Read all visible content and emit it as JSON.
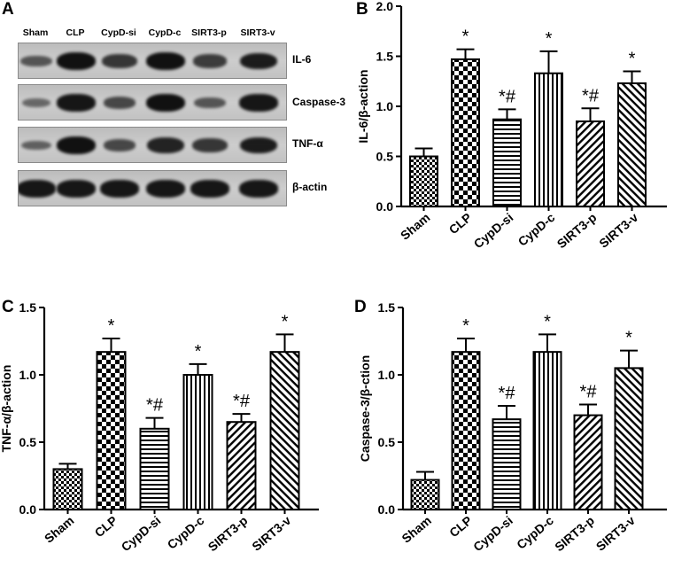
{
  "panel_labels": {
    "a": "A",
    "b": "B",
    "c": "C",
    "d": "D"
  },
  "blot": {
    "lanes": [
      "Sham",
      "CLP",
      "CypD-si",
      "CypD-c",
      "SIRT3-p",
      "SIRT3-v"
    ],
    "rows": [
      {
        "label": "IL-6",
        "intensity": [
          0.45,
          1.0,
          0.7,
          1.0,
          0.65,
          0.9
        ]
      },
      {
        "label": "Caspase-3",
        "intensity": [
          0.3,
          0.95,
          0.55,
          1.0,
          0.45,
          0.95
        ]
      },
      {
        "label": "TNF-α",
        "intensity": [
          0.35,
          1.0,
          0.55,
          0.85,
          0.7,
          0.9
        ]
      },
      {
        "label": "β-actin",
        "intensity": [
          0.95,
          0.95,
          0.95,
          0.95,
          0.95,
          0.95
        ]
      }
    ]
  },
  "chart_data": [
    {
      "type": "bar",
      "panel": "B",
      "categories": [
        "Sham",
        "CLP",
        "CypD-si",
        "CypD-c",
        "SIRT3-p",
        "SIRT3-v"
      ],
      "values": [
        0.5,
        1.47,
        0.87,
        1.33,
        0.85,
        1.23
      ],
      "errors": [
        0.08,
        0.1,
        0.1,
        0.22,
        0.13,
        0.12
      ],
      "annotations": [
        "",
        "*",
        "*#",
        "*",
        "*#",
        "*"
      ],
      "patterns": [
        "checker-small",
        "checker-big",
        "horizontal",
        "vertical",
        "diag-down",
        "diag-up"
      ],
      "ylabel": "IL-6/β-action",
      "ylim": [
        0,
        2.0
      ],
      "yticks": [
        0,
        0.5,
        1.0,
        1.5,
        2.0
      ],
      "ytick_labels": [
        "0.0",
        "0.5",
        "1.0",
        "1.5",
        "2.0"
      ],
      "grid": false
    },
    {
      "type": "bar",
      "panel": "C",
      "categories": [
        "Sham",
        "CLP",
        "CypD-si",
        "CypD-c",
        "SIRT3-p",
        "SIRT3-v"
      ],
      "values": [
        0.3,
        1.17,
        0.6,
        1.0,
        0.65,
        1.17
      ],
      "errors": [
        0.04,
        0.1,
        0.08,
        0.08,
        0.06,
        0.13
      ],
      "annotations": [
        "",
        "*",
        "*#",
        "*",
        "*#",
        "*"
      ],
      "patterns": [
        "checker-small",
        "checker-big",
        "horizontal",
        "vertical",
        "diag-down",
        "diag-up"
      ],
      "ylabel": "TNF-α/β-action",
      "ylim": [
        0,
        1.5
      ],
      "yticks": [
        0,
        0.5,
        1.0,
        1.5
      ],
      "ytick_labels": [
        "0.0",
        "0.5",
        "1.0",
        "1.5"
      ],
      "grid": false
    },
    {
      "type": "bar",
      "panel": "D",
      "categories": [
        "Sham",
        "CLP",
        "CypD-si",
        "CypD-c",
        "SIRT3-p",
        "SIRT3-v"
      ],
      "values": [
        0.22,
        1.17,
        0.67,
        1.17,
        0.7,
        1.05
      ],
      "errors": [
        0.06,
        0.1,
        0.1,
        0.13,
        0.08,
        0.13
      ],
      "annotations": [
        "",
        "*",
        "*#",
        "*",
        "*#",
        "*"
      ],
      "patterns": [
        "checker-small",
        "checker-big",
        "horizontal",
        "vertical",
        "diag-down",
        "diag-up"
      ],
      "ylabel": "Caspase-3/β-ction",
      "ylim": [
        0,
        1.5
      ],
      "yticks": [
        0,
        0.5,
        1.0,
        1.5
      ],
      "ytick_labels": [
        "0.0",
        "0.5",
        "1.0",
        "1.5"
      ],
      "grid": false
    }
  ]
}
